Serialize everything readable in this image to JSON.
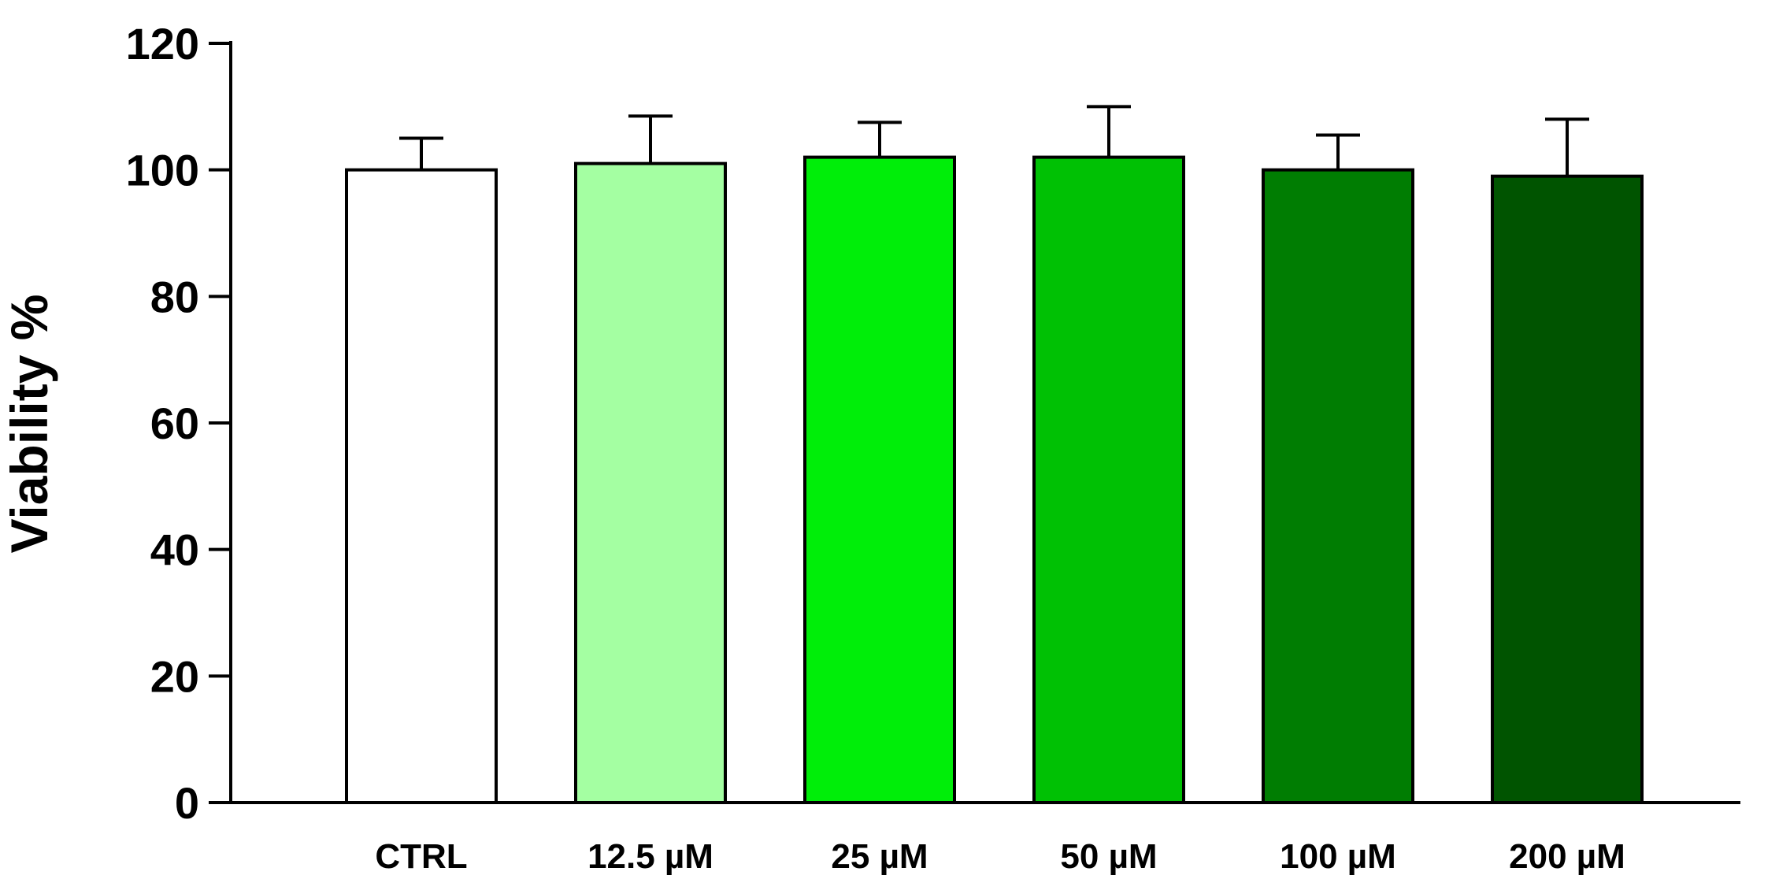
{
  "chart_data": {
    "type": "bar",
    "title": "",
    "xlabel": "",
    "ylabel": "Viability %",
    "ylim": [
      0,
      120
    ],
    "yticks": [
      0,
      20,
      40,
      60,
      80,
      100,
      120
    ],
    "grid": false,
    "legend": "none",
    "categories": [
      "CTRL",
      "12.5 µM",
      "25 µM",
      "50 µM",
      "100 µM",
      "200 µM"
    ],
    "values": [
      100,
      101,
      102,
      102,
      100,
      99
    ],
    "errors": [
      5,
      7.5,
      5.5,
      8,
      5.5,
      9
    ],
    "colors": [
      "#ffffff",
      "#a4ffa2",
      "#00ee09",
      "#00c104",
      "#007d02",
      "#005400"
    ],
    "edge_color": "#000000"
  }
}
